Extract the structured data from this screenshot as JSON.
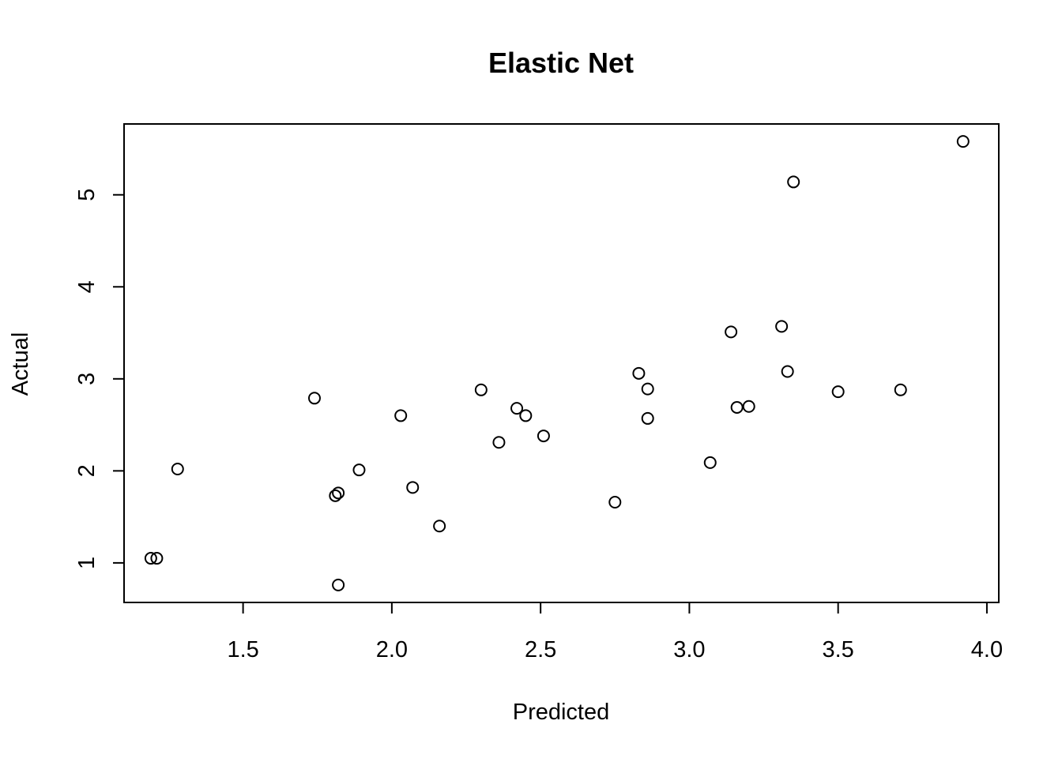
{
  "chart_data": {
    "type": "scatter",
    "title": "Elastic Net",
    "xlabel": "Predicted",
    "ylabel": "Actual",
    "xlim": [
      1.1,
      4.04
    ],
    "ylim": [
      0.57,
      5.77
    ],
    "x_ticks": [
      1.5,
      2.0,
      2.5,
      3.0,
      3.5,
      4.0
    ],
    "x_tick_labels": [
      "1.5",
      "2.0",
      "2.5",
      "3.0",
      "3.5",
      "4.0"
    ],
    "y_ticks": [
      1,
      2,
      3,
      4,
      5
    ],
    "y_tick_labels": [
      "1",
      "2",
      "3",
      "4",
      "5"
    ],
    "grid": false,
    "marker": "open-circle",
    "points": [
      {
        "x": 1.19,
        "y": 1.05
      },
      {
        "x": 1.21,
        "y": 1.05
      },
      {
        "x": 1.28,
        "y": 2.02
      },
      {
        "x": 1.74,
        "y": 2.79
      },
      {
        "x": 1.81,
        "y": 1.73
      },
      {
        "x": 1.82,
        "y": 1.76
      },
      {
        "x": 1.82,
        "y": 0.76
      },
      {
        "x": 1.89,
        "y": 2.01
      },
      {
        "x": 2.03,
        "y": 2.6
      },
      {
        "x": 2.07,
        "y": 1.82
      },
      {
        "x": 2.16,
        "y": 1.4
      },
      {
        "x": 2.3,
        "y": 2.88
      },
      {
        "x": 2.36,
        "y": 2.31
      },
      {
        "x": 2.42,
        "y": 2.68
      },
      {
        "x": 2.45,
        "y": 2.6
      },
      {
        "x": 2.51,
        "y": 2.38
      },
      {
        "x": 2.75,
        "y": 1.66
      },
      {
        "x": 2.83,
        "y": 3.06
      },
      {
        "x": 2.86,
        "y": 2.89
      },
      {
        "x": 2.86,
        "y": 2.57
      },
      {
        "x": 3.07,
        "y": 2.09
      },
      {
        "x": 3.14,
        "y": 3.51
      },
      {
        "x": 3.16,
        "y": 2.69
      },
      {
        "x": 3.2,
        "y": 2.7
      },
      {
        "x": 3.31,
        "y": 3.57
      },
      {
        "x": 3.33,
        "y": 3.08
      },
      {
        "x": 3.35,
        "y": 5.14
      },
      {
        "x": 3.5,
        "y": 2.86
      },
      {
        "x": 3.71,
        "y": 2.88
      },
      {
        "x": 3.92,
        "y": 5.58
      }
    ]
  }
}
